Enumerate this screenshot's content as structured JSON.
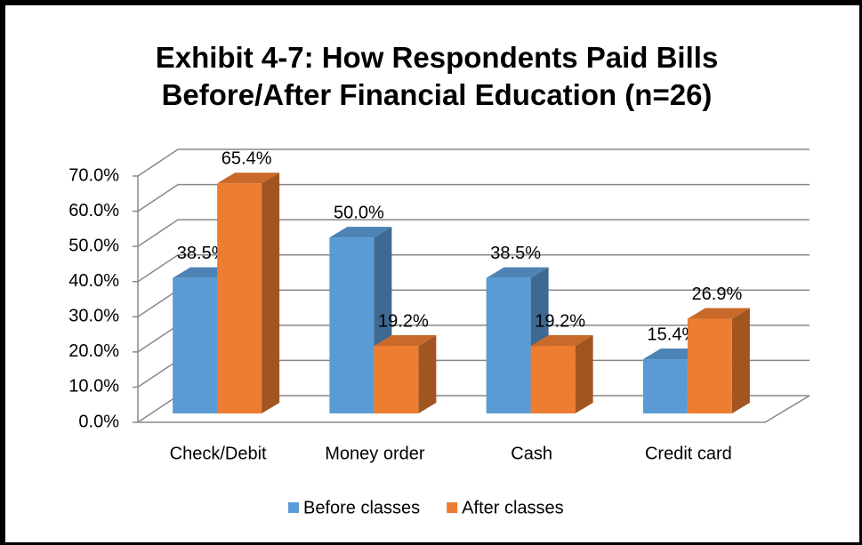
{
  "chart_data": {
    "type": "bar3d",
    "title": "Exhibit 4-7: How Respondents Paid Bills Before/After Financial Education (n=26)",
    "categories": [
      "Check/Debit",
      "Money order",
      "Cash",
      "Credit card"
    ],
    "series": [
      {
        "name": "Before classes",
        "color": "#5b9bd5",
        "values": [
          38.5,
          50.0,
          38.5,
          15.4
        ],
        "value_labels": [
          "38.5%",
          "50.0%",
          "38.5%",
          "15.4%"
        ]
      },
      {
        "name": "After classes",
        "color": "#ed7d31",
        "values": [
          65.4,
          19.2,
          19.2,
          26.9
        ],
        "value_labels": [
          "65.4%",
          "19.2%",
          "19.2%",
          "26.9%"
        ]
      }
    ],
    "ylim": [
      0,
      70
    ],
    "yticks": [
      {
        "value": 0,
        "label": "0.0%"
      },
      {
        "value": 10,
        "label": "10.0%"
      },
      {
        "value": 20,
        "label": "20.0%"
      },
      {
        "value": 30,
        "label": "30.0%"
      },
      {
        "value": 40,
        "label": "40.0%"
      },
      {
        "value": 50,
        "label": "50.0%"
      },
      {
        "value": 60,
        "label": "60.0%"
      },
      {
        "value": 70,
        "label": "70.0%"
      }
    ],
    "grid": true,
    "legend": "bottom"
  }
}
